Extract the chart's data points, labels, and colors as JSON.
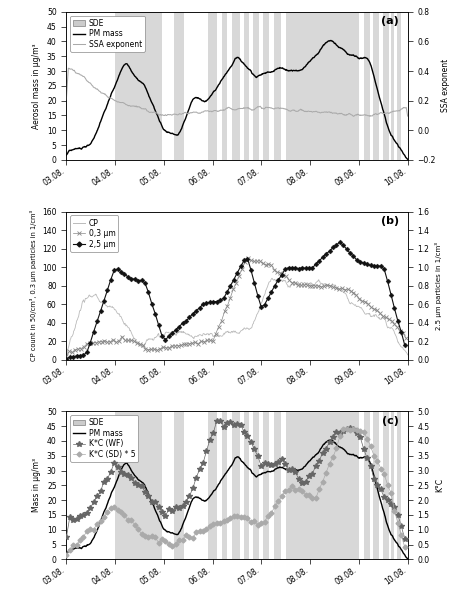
{
  "x_labels": [
    "03.08.",
    "04.08.",
    "05.08.",
    "06.08.",
    "07.08.",
    "08.08.",
    "09.08.",
    "10.08."
  ],
  "panel_a": {
    "label": "(a)",
    "ylim_left": [
      0,
      50
    ],
    "ylim_right": [
      -0.2,
      0.8
    ],
    "yticks_left": [
      0,
      5,
      10,
      15,
      20,
      25,
      30,
      35,
      40,
      45,
      50
    ],
    "yticks_right": [
      -0.2,
      0.0,
      0.2,
      0.4,
      0.6,
      0.8
    ],
    "ylabel_left": "Aerosol mass in μg/m³",
    "ylabel_right": "SSA exponent",
    "legend": [
      "SDE",
      "PM mass",
      "SSA exponent"
    ],
    "sde_color": "#cccccc",
    "pm_color": "#000000",
    "ssa_color": "#aaaaaa"
  },
  "panel_b": {
    "label": "(b)",
    "ylim_left": [
      0,
      160
    ],
    "ylim_right": [
      0.0,
      1.6
    ],
    "yticks_left": [
      0,
      20,
      40,
      60,
      80,
      100,
      120,
      140,
      160
    ],
    "yticks_right": [
      0.0,
      0.2,
      0.4,
      0.6,
      0.8,
      1.0,
      1.2,
      1.4,
      1.6
    ],
    "ylabel_left": "CP count in 50/cm³, 0.3 μm particles in 1/cm³",
    "ylabel_right": "2.5 μm particles in 1/cm³",
    "legend": [
      "CP",
      "0,3 μm",
      "2,5 μm"
    ],
    "cp_color": "#bbbbbb",
    "p03_color": "#888888",
    "p25_color": "#111111"
  },
  "panel_c": {
    "label": "(c)",
    "ylim_left": [
      0,
      50
    ],
    "ylim_right": [
      0.0,
      5.0
    ],
    "yticks_left": [
      0,
      5,
      10,
      15,
      20,
      25,
      30,
      35,
      40,
      45,
      50
    ],
    "yticks_right": [
      0.0,
      0.5,
      1.0,
      1.5,
      2.0,
      2.5,
      3.0,
      3.5,
      4.0,
      4.5,
      5.0
    ],
    "ylabel_left": "Mass in μg/m³",
    "ylabel_right": "K°C",
    "legend": [
      "SDE",
      "PM mass",
      "K*C (WF)",
      "K*C (SD) * 5"
    ],
    "sde_color": "#cccccc",
    "pm_color": "#000000",
    "kwf_color": "#666666",
    "ksd_color": "#aaaaaa"
  },
  "bg_color": "#ffffff"
}
